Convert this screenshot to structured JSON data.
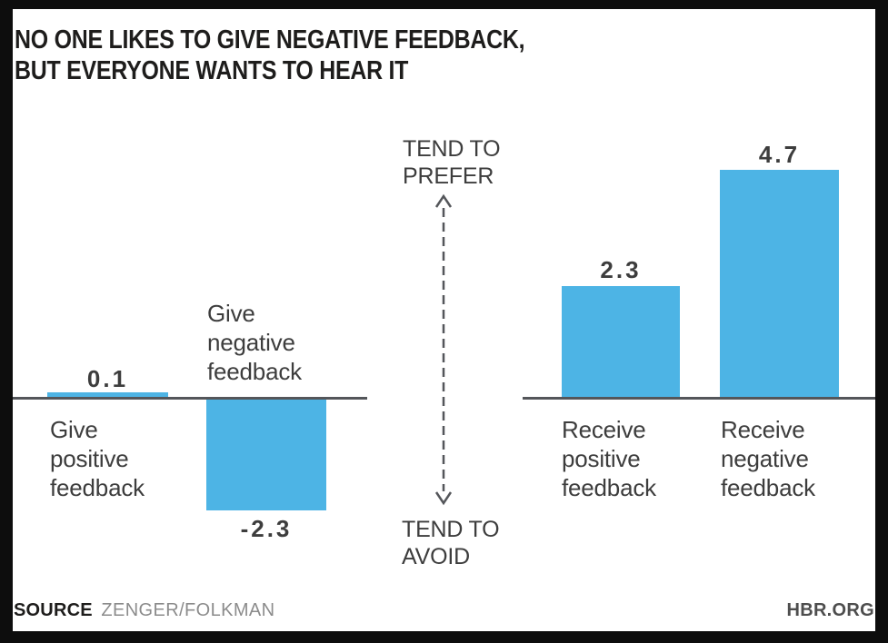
{
  "title": {
    "line1": "NO ONE LIKES TO GIVE NEGATIVE FEEDBACK,",
    "line2": "BUT EVERYONE WANTS TO HEAR IT"
  },
  "chart_data": {
    "type": "bar",
    "title": "NO ONE LIKES TO GIVE NEGATIVE FEEDBACK, BUT EVERYONE WANTS TO HEAR IT",
    "grid": false,
    "legend": false,
    "baseline": 0,
    "groups": [
      {
        "name": "give",
        "categories": [
          "Give positive feedback",
          "Give negative feedback"
        ],
        "values": [
          0.1,
          -2.3
        ],
        "value_labels": [
          "0.1",
          "-2.3"
        ]
      },
      {
        "name": "receive",
        "categories": [
          "Receive positive feedback",
          "Receive negative feedback"
        ],
        "values": [
          2.3,
          4.7
        ],
        "value_labels": [
          "2.3",
          "4.7"
        ]
      }
    ],
    "annotations": {
      "top": [
        "TEND TO",
        "PREFER"
      ],
      "bottom": [
        "TEND TO",
        "AVOID"
      ]
    },
    "bar_color": "#4DB4E5",
    "axis_color": "#54565A",
    "title_color": "#1E1D1C",
    "label_color": "#3D3D3D",
    "frame_color": "#0D0D0D"
  },
  "footer": {
    "source_label": "SOURCE",
    "source_value": "ZENGER/FOLKMAN",
    "brand": "HBR.ORG"
  }
}
